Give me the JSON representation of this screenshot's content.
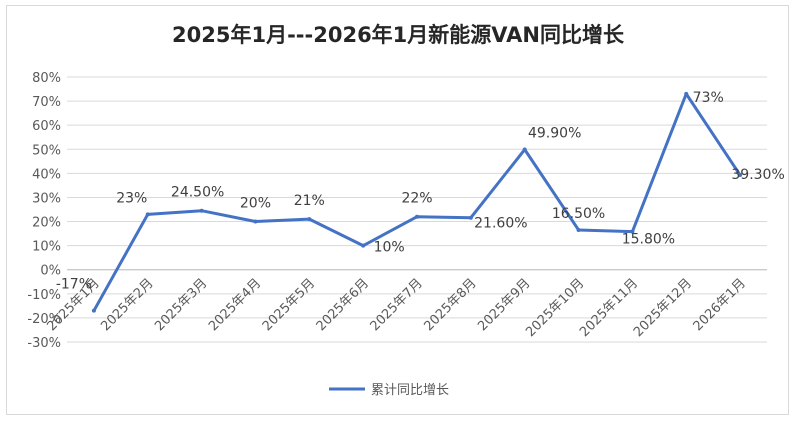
{
  "chart_data": {
    "type": "line",
    "title": "2025年1月---2026年1月新能源VAN同比增长",
    "categories": [
      "2025年1月",
      "2025年2月",
      "2025年3月",
      "2025年4月",
      "2025年5月",
      "2025年6月",
      "2025年7月",
      "2025年8月",
      "2025年9月",
      "2025年10月",
      "2025年11月",
      "2025年12月",
      "2026年1月"
    ],
    "series": [
      {
        "name": "累计同比增长",
        "color": "#4472C4",
        "values": [
          -17,
          23,
          24.5,
          20,
          21,
          10,
          22,
          21.6,
          49.9,
          16.5,
          15.8,
          73,
          39.3
        ],
        "data_labels": [
          "-17%",
          "23%",
          "24.50%",
          "20%",
          "21%",
          "10%",
          "22%",
          "21.60%",
          "49.90%",
          "16.50%",
          "15.80%",
          "73%",
          "39.30%"
        ]
      }
    ],
    "y_ticks": [
      -30,
      -20,
      -10,
      0,
      10,
      20,
      30,
      40,
      50,
      60,
      70,
      80
    ],
    "y_tick_labels": [
      "-30%",
      "-20%",
      "-10%",
      "0%",
      "10%",
      "20%",
      "30%",
      "40%",
      "50%",
      "60%",
      "70%",
      "80%"
    ],
    "ylim": [
      -30,
      80
    ],
    "grid": true,
    "legend_position": "bottom"
  }
}
